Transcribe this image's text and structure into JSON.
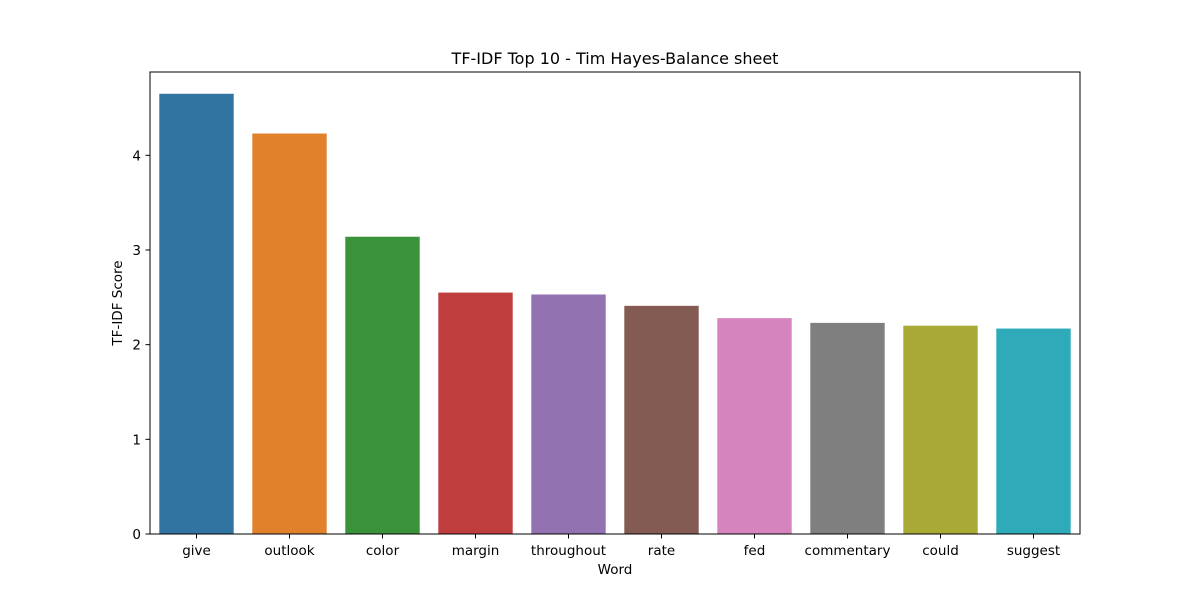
{
  "chart_data": {
    "type": "bar",
    "title": "TF-IDF Top 10 - Tim Hayes-Balance sheet",
    "xlabel": "Word",
    "ylabel": "TF-IDF Score",
    "categories": [
      "give",
      "outlook",
      "color",
      "margin",
      "throughout",
      "rate",
      "fed",
      "commentary",
      "could",
      "suggest"
    ],
    "values": [
      4.65,
      4.23,
      3.14,
      2.55,
      2.53,
      2.41,
      2.28,
      2.23,
      2.2,
      2.17
    ],
    "colors": [
      "#3274a1",
      "#e1812c",
      "#3a923a",
      "#c03d3e",
      "#9372b2",
      "#845b53",
      "#d684bd",
      "#7f7f7f",
      "#a9aa35",
      "#2eaab8"
    ],
    "ylim": [
      0,
      4.88
    ],
    "yticks": [
      0,
      1,
      2,
      3,
      4
    ],
    "grid": false,
    "legend": "none"
  }
}
